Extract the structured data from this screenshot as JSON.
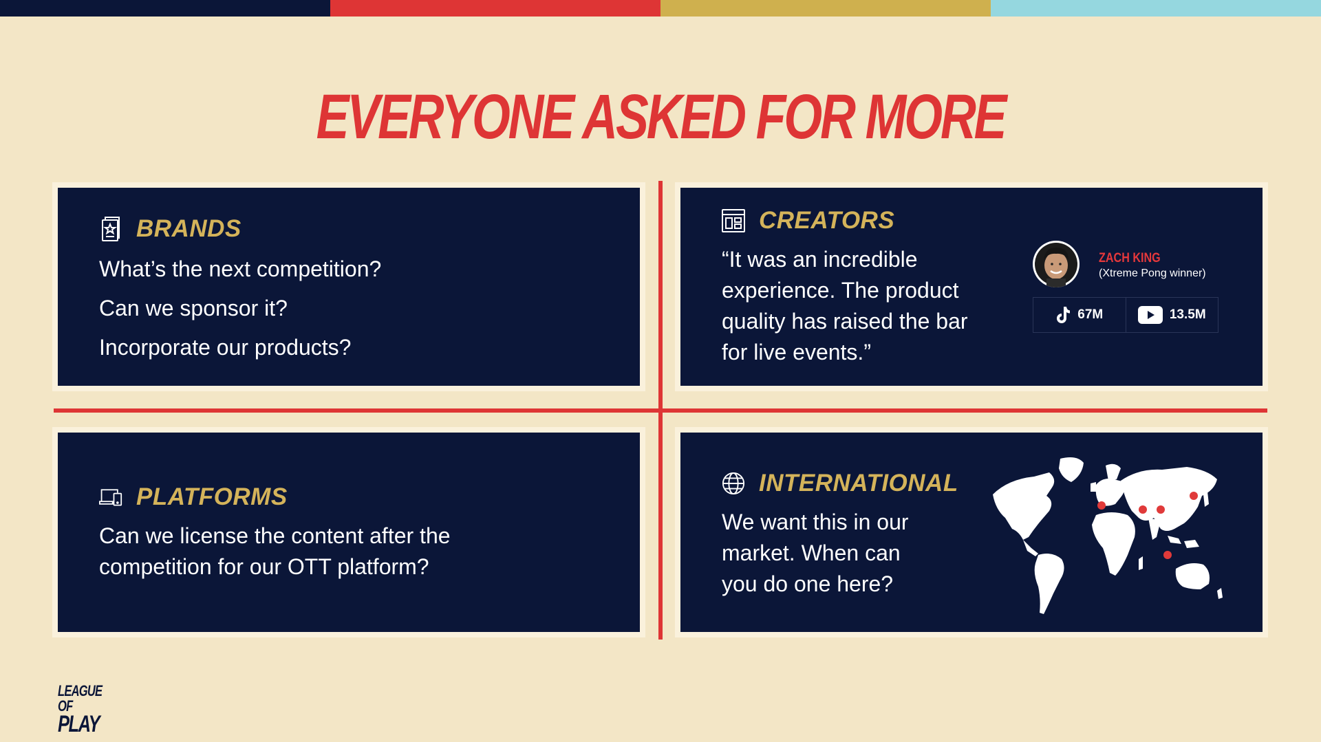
{
  "colors": {
    "navy": "#0b1638",
    "red": "#de3535",
    "gold": "#d4b35a",
    "teal": "#95d7df",
    "cream": "#f3e6c6"
  },
  "topbar": [
    "#0b1638",
    "#de3535",
    "#cfb04e",
    "#95d7df"
  ],
  "title": "EVERYONE ASKED FOR MORE",
  "brands": {
    "icon": "award-document-icon",
    "heading": "BRANDS",
    "lines": [
      "What’s the next competition?",
      "Can we sponsor it?",
      "Incorporate our products?"
    ]
  },
  "creators": {
    "icon": "layout-dashboard-icon",
    "heading": "CREATORS",
    "quote": [
      "“It was an incredible",
      "experience. The product",
      "quality has raised the bar",
      "for live events.”"
    ],
    "name": "ZACH KING",
    "subtitle": "(Xtreme Pong winner)",
    "tiktok_icon": "tiktok-icon",
    "tiktok": "67M",
    "youtube_icon": "youtube-icon",
    "youtube": "13.5M"
  },
  "platforms": {
    "icon": "devices-icon",
    "heading": "PLATFORMS",
    "lines": [
      "Can we license the content after the",
      "competition for our OTT platform?"
    ]
  },
  "international": {
    "icon": "globe-icon",
    "heading": "INTERNATIONAL",
    "lines": [
      "We want this in our",
      "market. When can",
      "you do one here?"
    ],
    "map_icon": "world-map-icon"
  },
  "logo": {
    "line1": "LEAGUE OF",
    "line2": "PLAY"
  }
}
